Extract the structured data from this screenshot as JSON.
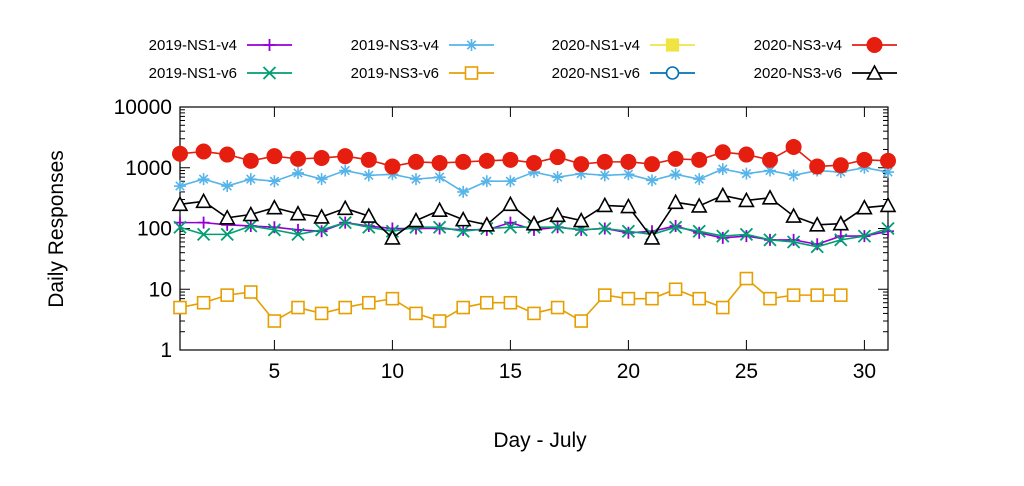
{
  "chart_data": {
    "type": "line",
    "xlabel": "Day - July",
    "ylabel": "Daily Responses",
    "xlim": [
      1,
      31
    ],
    "ylim": [
      1,
      10000
    ],
    "yscale": "log",
    "xticks": [
      5,
      10,
      15,
      20,
      25,
      30
    ],
    "yticks": [
      1,
      10,
      100,
      1000,
      10000
    ],
    "ytick_labels": [
      "1",
      "10",
      "100",
      "1000",
      "10000"
    ],
    "legend_position": "top",
    "grid": false,
    "series": [
      {
        "name": "2019-NS1-v4",
        "color": "#9400d3",
        "marker": "plus",
        "x": [
          1,
          2,
          3,
          4,
          5,
          6,
          7,
          8,
          9,
          10,
          11,
          12,
          13,
          14,
          15,
          16,
          17,
          18,
          19,
          20,
          21,
          22,
          23,
          24,
          25,
          26,
          27,
          28,
          29,
          30,
          31
        ],
        "values": [
          125,
          125,
          115,
          110,
          105,
          95,
          90,
          125,
          110,
          100,
          100,
          100,
          95,
          95,
          125,
          95,
          105,
          95,
          100,
          85,
          90,
          110,
          85,
          70,
          75,
          65,
          65,
          55,
          75,
          75,
          90
        ]
      },
      {
        "name": "2019-NS1-v6",
        "color": "#009e73",
        "marker": "x",
        "x": [
          1,
          2,
          3,
          4,
          5,
          6,
          7,
          8,
          9,
          10,
          11,
          12,
          13,
          14,
          15,
          16,
          17,
          18,
          19,
          20,
          21,
          22,
          23,
          24,
          25,
          26,
          27,
          28,
          29,
          30,
          31
        ],
        "values": [
          105,
          80,
          80,
          110,
          95,
          80,
          95,
          125,
          105,
          90,
          105,
          105,
          90,
          100,
          105,
          105,
          105,
          95,
          100,
          90,
          80,
          105,
          90,
          75,
          80,
          65,
          60,
          50,
          65,
          75,
          100
        ]
      },
      {
        "name": "2019-NS3-v4",
        "color": "#56b4e9",
        "marker": "star",
        "x": [
          1,
          2,
          3,
          4,
          5,
          6,
          7,
          8,
          9,
          10,
          11,
          12,
          13,
          14,
          15,
          16,
          17,
          18,
          19,
          20,
          21,
          22,
          23,
          24,
          25,
          26,
          27,
          28,
          29,
          30,
          31
        ],
        "values": [
          500,
          650,
          500,
          650,
          600,
          820,
          650,
          900,
          750,
          780,
          650,
          700,
          400,
          600,
          600,
          850,
          700,
          800,
          750,
          780,
          620,
          780,
          650,
          950,
          800,
          900,
          750,
          900,
          850,
          1000,
          850
        ]
      },
      {
        "name": "2019-NS3-v6",
        "color": "#e69f00",
        "marker": "square-open",
        "x": [
          1,
          2,
          3,
          4,
          5,
          6,
          7,
          8,
          9,
          10,
          11,
          12,
          13,
          14,
          15,
          16,
          17,
          18,
          19,
          20,
          21,
          22,
          23,
          24,
          25,
          26,
          27,
          28,
          29
        ],
        "values": [
          5,
          6,
          8,
          9,
          3,
          5,
          4,
          5,
          6,
          7,
          4,
          3,
          5,
          6,
          6,
          4,
          5,
          3,
          8,
          7,
          7,
          10,
          7,
          5,
          15,
          7,
          8,
          8,
          8
        ]
      },
      {
        "name": "2020-NS1-v4",
        "color": "#f0e442",
        "marker": "square-filled",
        "x": [],
        "values": []
      },
      {
        "name": "2020-NS1-v6",
        "color": "#0072b2",
        "marker": "circle-open",
        "x": [],
        "values": []
      },
      {
        "name": "2020-NS3-v4",
        "color": "#e51e10",
        "marker": "circle-filled",
        "x": [
          1,
          2,
          3,
          4,
          5,
          6,
          7,
          8,
          9,
          10,
          11,
          12,
          13,
          14,
          15,
          16,
          17,
          18,
          19,
          20,
          21,
          22,
          23,
          24,
          25,
          26,
          27,
          28,
          29,
          30,
          31
        ],
        "values": [
          1700,
          1850,
          1650,
          1300,
          1550,
          1400,
          1450,
          1550,
          1350,
          1050,
          1250,
          1200,
          1250,
          1300,
          1350,
          1200,
          1500,
          1150,
          1250,
          1250,
          1150,
          1400,
          1350,
          1800,
          1650,
          1350,
          2200,
          1050,
          1100,
          1350,
          1300
        ]
      },
      {
        "name": "2020-NS3-v6",
        "color": "#000000",
        "marker": "triangle-open",
        "x": [
          1,
          2,
          3,
          4,
          5,
          6,
          7,
          8,
          9,
          10,
          11,
          12,
          13,
          14,
          15,
          16,
          17,
          18,
          19,
          20,
          21,
          22,
          23,
          24,
          25,
          26,
          27,
          28,
          29,
          30,
          31
        ],
        "values": [
          250,
          280,
          150,
          170,
          220,
          175,
          155,
          215,
          160,
          70,
          135,
          200,
          140,
          115,
          250,
          120,
          165,
          135,
          240,
          230,
          70,
          270,
          235,
          350,
          290,
          320,
          160,
          115,
          120,
          220,
          240
        ]
      }
    ]
  }
}
